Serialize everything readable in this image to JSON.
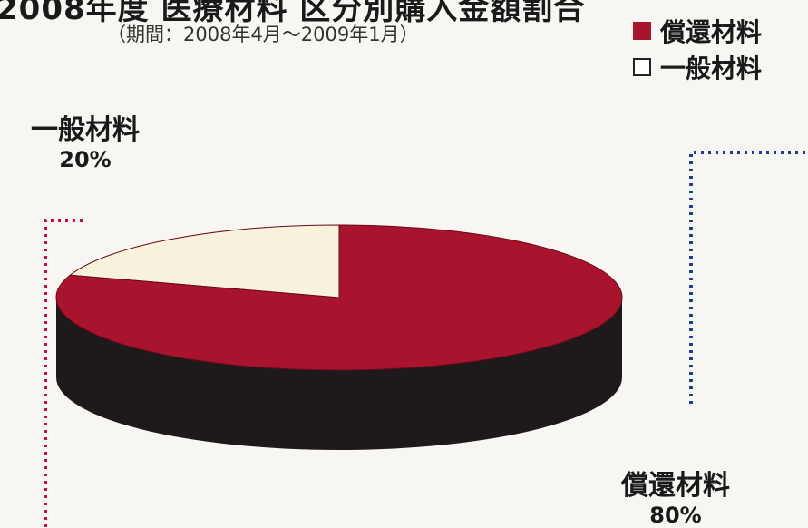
{
  "chart_data": {
    "type": "pie",
    "title": "2008年度 医療材料 区分別購入金額割合",
    "subtitle": "（期間：2008年4月～2009年1月）",
    "slices": [
      {
        "label": "償還材料",
        "value": 80,
        "display": "80%",
        "color": "#a8142e"
      },
      {
        "label": "一般材料",
        "value": 20,
        "display": "20%",
        "color": "#f8f2dc"
      }
    ],
    "legend": {
      "position": "top-right",
      "items": [
        {
          "label": "償還材料",
          "color": "#a8142e"
        },
        {
          "label": "一般材料",
          "color": "#ffffff"
        }
      ]
    },
    "style": {
      "three_d": true,
      "side_color": "#1e1a1c"
    }
  }
}
